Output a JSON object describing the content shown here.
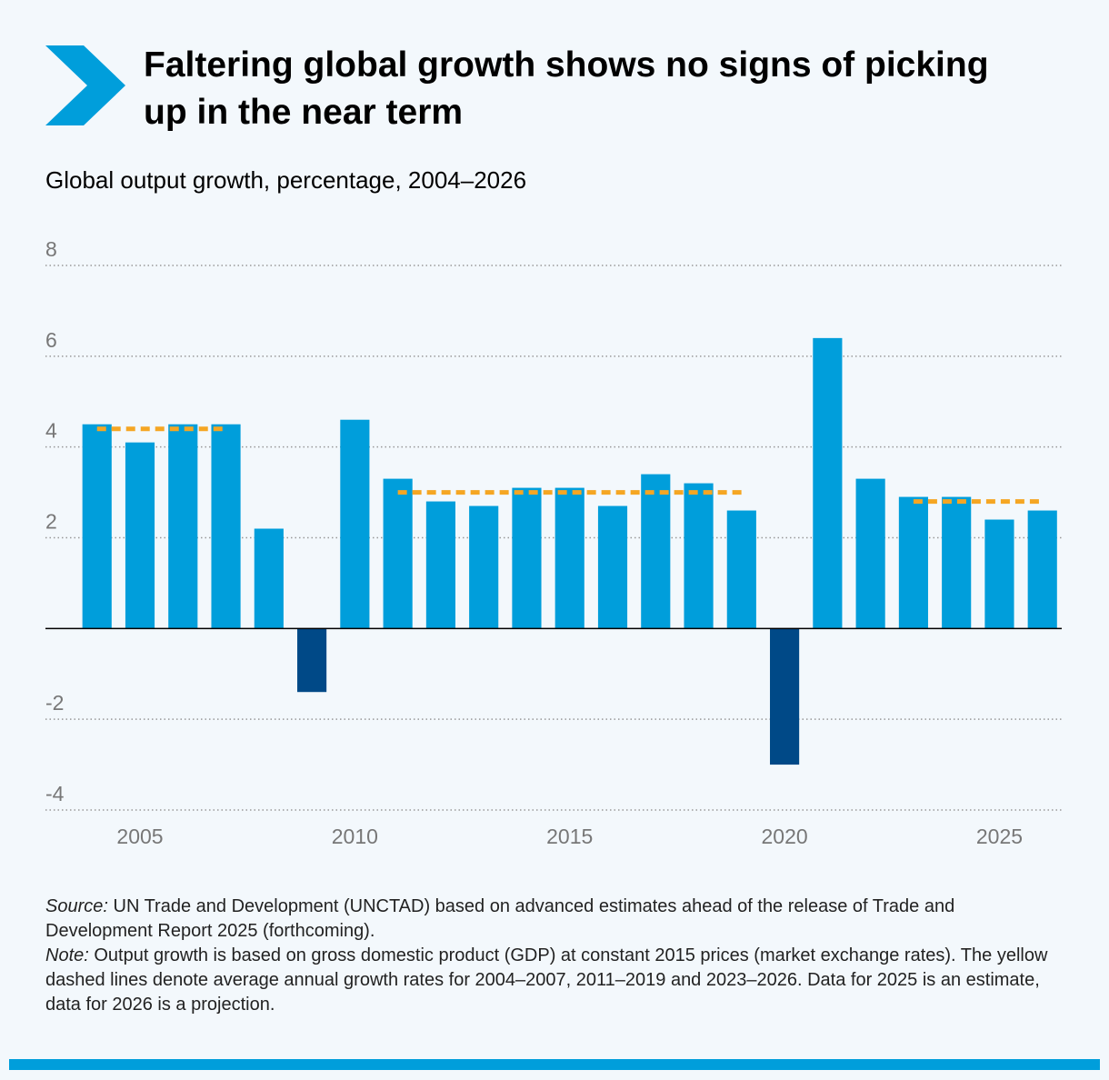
{
  "header": {
    "title": "Faltering global growth shows no signs of picking up in the near term"
  },
  "chart_data": {
    "type": "bar",
    "subtitle": "Global output growth, percentage, 2004–2026",
    "x": [
      2004,
      2005,
      2006,
      2007,
      2008,
      2009,
      2010,
      2011,
      2012,
      2013,
      2014,
      2015,
      2016,
      2017,
      2018,
      2019,
      2020,
      2021,
      2022,
      2023,
      2024,
      2025,
      2026
    ],
    "series": [
      {
        "color": "#009edb",
        "negative_color": "#004987",
        "values": [
          4.5,
          4.1,
          4.5,
          4.5,
          2.2,
          -1.4,
          4.6,
          3.3,
          2.8,
          2.7,
          3.1,
          3.1,
          2.7,
          3.4,
          3.2,
          2.6,
          -3.0,
          6.4,
          3.3,
          2.9,
          2.9,
          2.4,
          2.6
        ]
      }
    ],
    "averages": {
      "color": "#f5a623",
      "lines": [
        {
          "from": 2004,
          "to": 2007,
          "value": 4.4
        },
        {
          "from": 2011,
          "to": 2019,
          "value": 3.0
        },
        {
          "from": 2023,
          "to": 2026,
          "value": 2.8
        }
      ]
    },
    "xlim": [
      2002.8,
      2026.45
    ],
    "xticks": [
      2005,
      2010,
      2015,
      2020,
      2025
    ],
    "ylim": [
      -4,
      8
    ],
    "yticks": [
      -4,
      -2,
      2,
      4,
      6,
      8
    ],
    "grid": true
  },
  "footnotes": [
    {
      "label": "Source:",
      "text": " UN Trade and Development (UNCTAD) based on advanced estimates ahead of the release of Trade and Development Report 2025 (forthcoming)."
    },
    {
      "label": "Note:",
      "text": " Output growth is based on gross domestic product (GDP) at constant 2015 prices (market exchange rates). The yellow dashed lines denote average annual growth rates for 2004–2007, 2011–2019 and 2023–2026. Data for 2025 is an estimate, data for 2026 is a projection."
    }
  ]
}
